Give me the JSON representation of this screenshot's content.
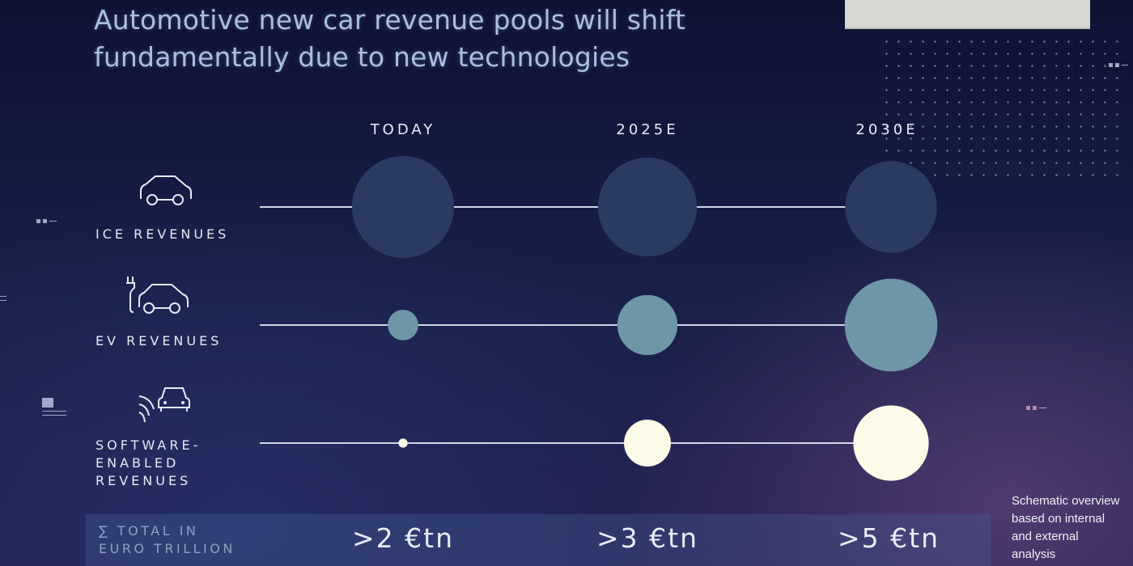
{
  "title": "Automotive new car revenue pools will shift fundamentally due to new technologies",
  "chart_data": {
    "type": "bubble-matrix",
    "columns": [
      "TODAY",
      "2025E",
      "2030E"
    ],
    "rows": [
      {
        "label": "ICE REVENUES",
        "icon": "car-outline-icon",
        "relative_sizes": [
          1.0,
          0.97,
          0.9
        ],
        "color": "#2b3a63"
      },
      {
        "label": "EV REVENUES",
        "icon": "ev-car-plug-icon",
        "relative_sizes": [
          0.3,
          0.59,
          0.91
        ],
        "color": "#6e96a6"
      },
      {
        "label": "SOFTWARE-\nENABLED\nREVENUES",
        "icon": "connected-car-signal-icon",
        "relative_sizes": [
          0.09,
          0.46,
          0.74
        ],
        "color": "#fbfbe8"
      }
    ],
    "totals": {
      "label": "∑ TOTAL IN\nEURO TRILLION",
      "values": [
        ">2 €tn",
        ">3 €tn",
        ">5 €tn"
      ]
    }
  },
  "note": "Schematic overview based on internal and external analysis",
  "colors": {
    "line": "#cfd6e6",
    "text": "#e8ecf5",
    "title": "#a9bfe0"
  }
}
